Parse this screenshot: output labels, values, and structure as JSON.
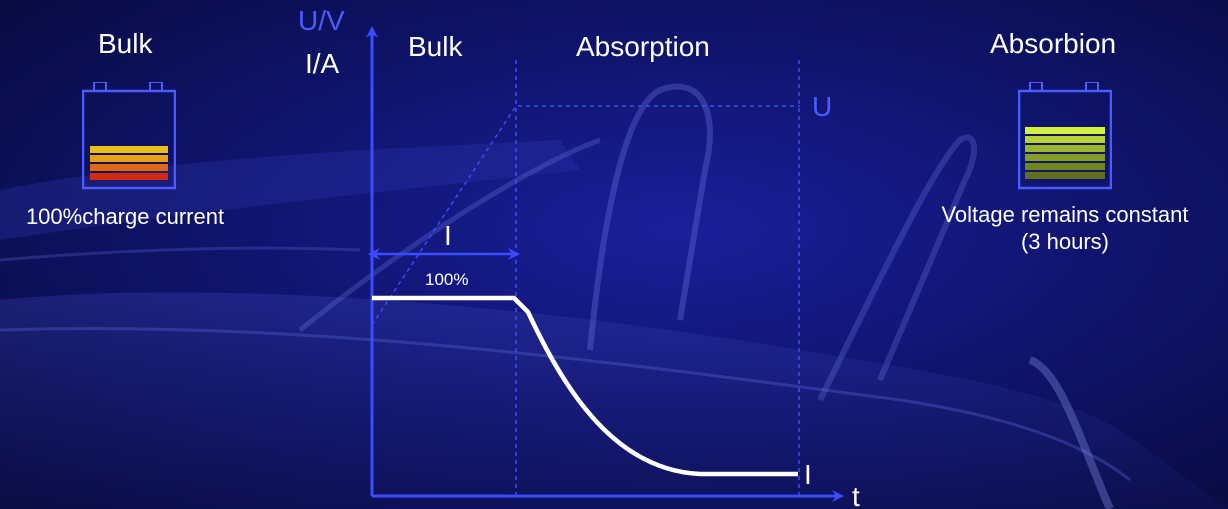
{
  "left_panel": {
    "title": "Bulk",
    "caption": "100%charge current",
    "battery_levels": [
      "#e8c018",
      "#e8a016",
      "#e06812",
      "#d02a10",
      "#c01010"
    ]
  },
  "right_panel": {
    "title": "Absorbion",
    "caption_line1": "Voltage remains constant",
    "caption_line2": "(3 hours)",
    "battery_levels": [
      "#d4f040",
      "#b8d434",
      "#9cb82a",
      "#869c22",
      "#72841c",
      "#62701a",
      "#56601a"
    ]
  },
  "diagram": {
    "y_axis_label_top": "U/V",
    "y_axis_label_bottom": "I/A",
    "x_axis_label": "t",
    "phases": [
      "Bulk",
      "Absorption"
    ],
    "voltage_label": "U",
    "current_label": "I",
    "current_end_label": "I",
    "current_percent": "100%",
    "colors": {
      "axis": "#3a4cff",
      "current": "#ffffff"
    }
  }
}
